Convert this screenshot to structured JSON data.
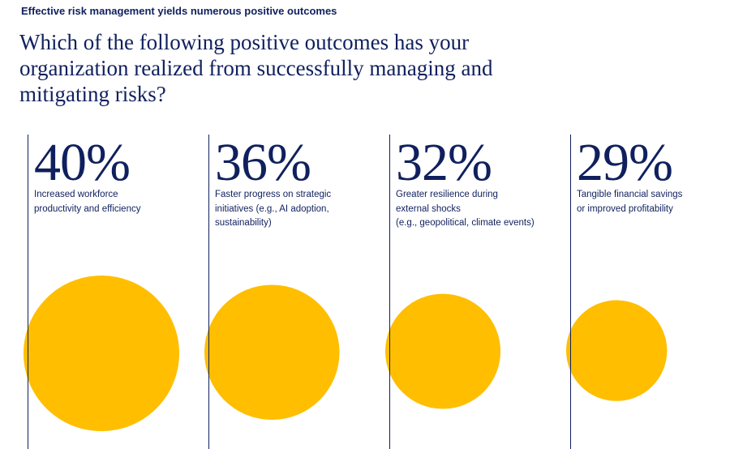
{
  "header": {
    "kicker": "Effective risk management yields numerous positive outcomes",
    "question": "Which of the following positive outcomes has your organization realized from successfully managing and mitigating risks?"
  },
  "colors": {
    "text": "#10205e",
    "bubble": "#ffbe00"
  },
  "chart_data": {
    "type": "bubble",
    "unit": "%",
    "categories": [
      "Increased workforce productivity and efficiency",
      "Faster progress on strategic initiatives (e.g., AI adoption, sustainability)",
      "Greater resilience during external shocks (e.g., geopolitical, climate events)",
      "Tangible financial savings or improved profitability"
    ],
    "values": [
      40,
      36,
      32,
      29
    ],
    "labels": [
      "40%",
      "36%",
      "32%",
      "29%"
    ],
    "descriptions": [
      "Increased workforce\nproductivity and efficiency",
      "Faster progress on strategic\ninitiatives (e.g., AI adoption,\nsustainability)",
      "Greater resilience during\nexternal shocks\n(e.g., geopolitical, climate events)",
      "Tangible financial savings\nor improved profitability"
    ]
  }
}
